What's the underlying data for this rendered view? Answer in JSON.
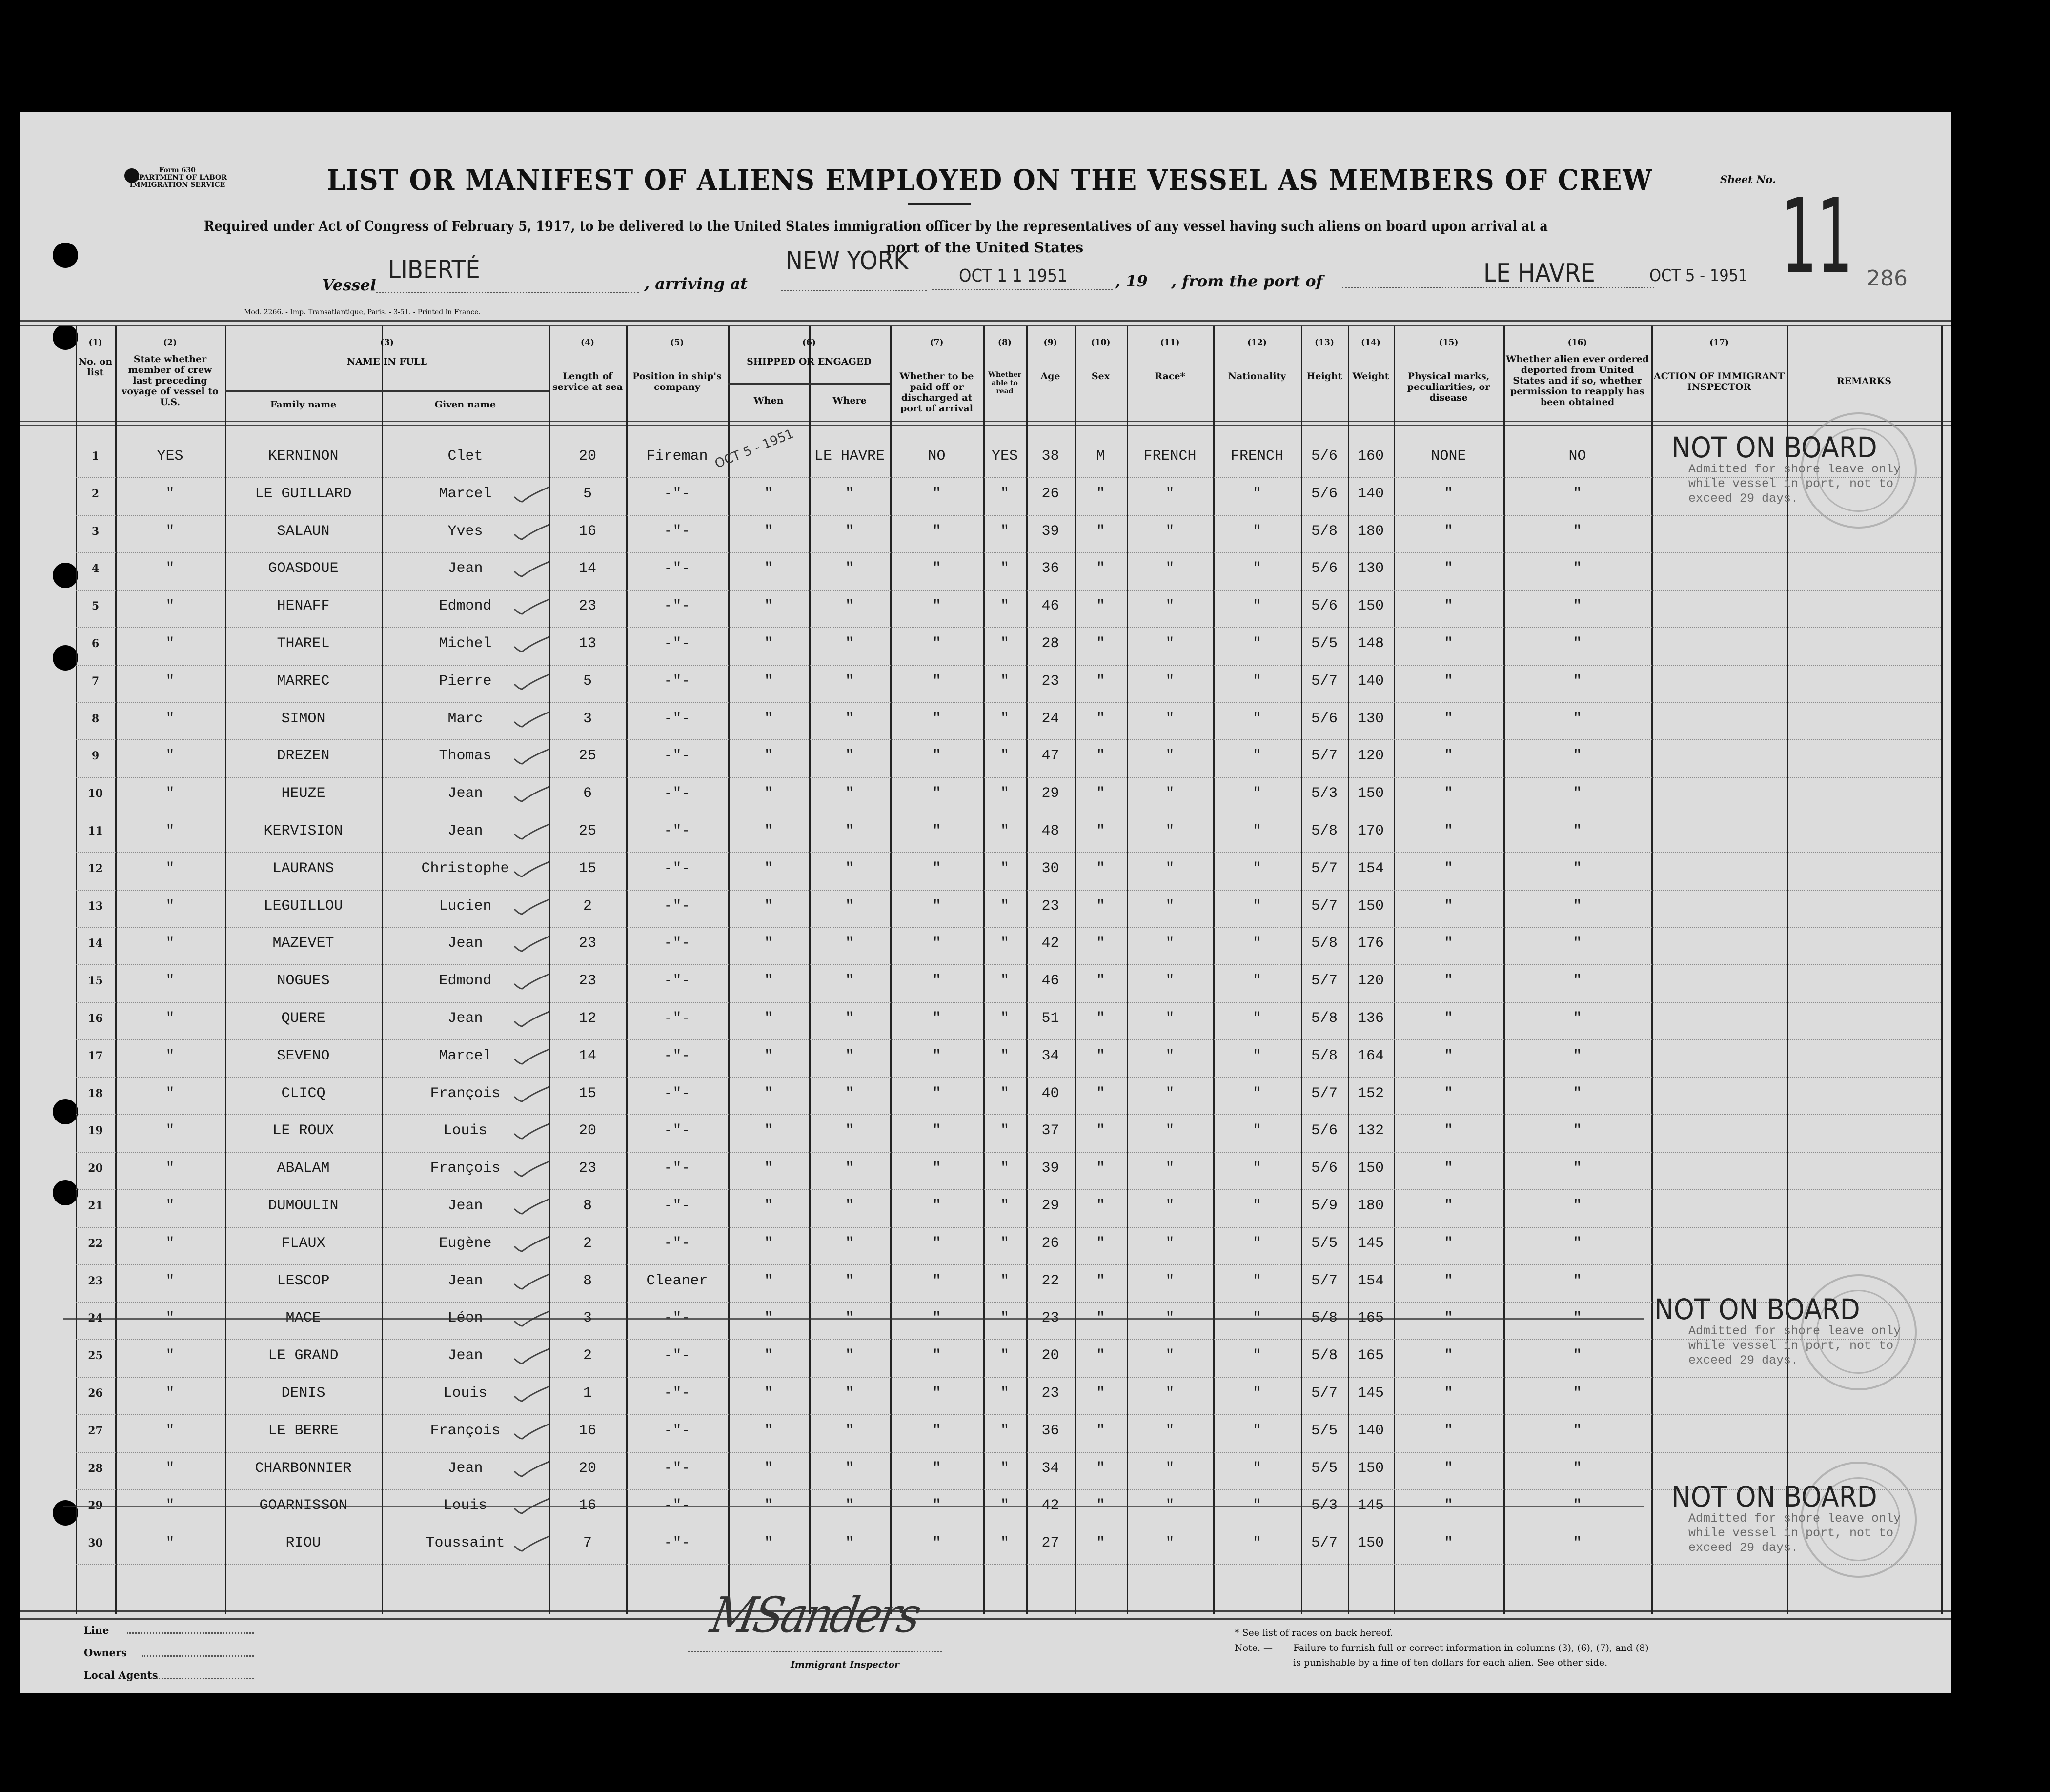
{
  "header": {
    "form_label": [
      "Form 630",
      "DEPARTMENT OF LABOR",
      "IMMIGRATION SERVICE"
    ],
    "title": "LIST OR MANIFEST OF ALIENS EMPLOYED ON THE VESSEL AS MEMBERS OF CREW",
    "sheet_label": "Sheet No.",
    "sheet_number": "11",
    "sheet_sub_number": "286",
    "requirement_line1": "Required under Act of Congress of February 5, 1917, to be delivered to the United States immigration officer by the representatives of any vessel having such aliens on board upon arrival at a",
    "requirement_line2": "port of the United States",
    "vessel_label": "Vessel",
    "vessel": "LIBERTÉ",
    "arriving_label": ", arriving at",
    "arriving_port": "NEW YORK",
    "arrival_date": "OCT 1 1 1951",
    "year_label": ", 19",
    "from_label": ", from the port of",
    "from_port": "LE HAVRE",
    "departure_date": "OCT 5 - 1951",
    "printer_line": "Mod. 2266. - Imp. Transatlantique, Paris. - 3-51. - Printed in France."
  },
  "columns": [
    {
      "num": "(1)",
      "label": "No. on list"
    },
    {
      "num": "(2)",
      "label": "State whether member of crew last preceding voyage of vessel to U.S."
    },
    {
      "num": "(3)",
      "label": "NAME IN FULL",
      "sub": [
        "Family name",
        "Given name"
      ]
    },
    {
      "num": "(4)",
      "label": "Length of service at sea"
    },
    {
      "num": "(5)",
      "label": "Position in ship's company"
    },
    {
      "num": "(6)",
      "label": "SHIPPED OR ENGAGED",
      "sub": [
        "When",
        "Where"
      ]
    },
    {
      "num": "(7)",
      "label": "Whether to be paid off or discharged at port of arrival"
    },
    {
      "num": "(8)",
      "label": "Whether able to read"
    },
    {
      "num": "(9)",
      "label": "Age"
    },
    {
      "num": "(10)",
      "label": "Sex"
    },
    {
      "num": "(11)",
      "label": "Race*"
    },
    {
      "num": "(12)",
      "label": "Nationality"
    },
    {
      "num": "(13)",
      "label": "Height"
    },
    {
      "num": "(14)",
      "label": "Weight"
    },
    {
      "num": "(15)",
      "label": "Physical marks, peculiarities, or disease"
    },
    {
      "num": "(16)",
      "label": "Whether alien ever ordered deported from United States and if so, whether permission to reapply has been obtained"
    },
    {
      "num": "(17)",
      "label": "ACTION OF IMMIGRANT INSPECTOR"
    },
    {
      "num": "",
      "label": "REMARKS"
    }
  ],
  "rows": [
    [
      "1",
      "YES",
      "KERNINON",
      "Clet",
      "20",
      "Fireman",
      "",
      "LE HAVRE",
      "NO",
      "YES",
      "38",
      "M",
      "FRENCH",
      "FRENCH",
      "5/6",
      "160",
      "NONE",
      "NO"
    ],
    [
      "2",
      "\"",
      "LE GUILLARD",
      "Marcel",
      "5",
      "-\"-",
      "\"",
      "\"",
      "\"",
      "\"",
      "26",
      "\"",
      "\"",
      "\"",
      "5/6",
      "140",
      "\"",
      "\""
    ],
    [
      "3",
      "\"",
      "SALAUN",
      "Yves",
      "16",
      "-\"-",
      "\"",
      "\"",
      "\"",
      "\"",
      "39",
      "\"",
      "\"",
      "\"",
      "5/8",
      "180",
      "\"",
      "\""
    ],
    [
      "4",
      "\"",
      "GOASDOUE",
      "Jean",
      "14",
      "-\"-",
      "\"",
      "\"",
      "\"",
      "\"",
      "36",
      "\"",
      "\"",
      "\"",
      "5/6",
      "130",
      "\"",
      "\""
    ],
    [
      "5",
      "\"",
      "HENAFF",
      "Edmond",
      "23",
      "-\"-",
      "\"",
      "\"",
      "\"",
      "\"",
      "46",
      "\"",
      "\"",
      "\"",
      "5/6",
      "150",
      "\"",
      "\""
    ],
    [
      "6",
      "\"",
      "THAREL",
      "Michel",
      "13",
      "-\"-",
      "\"",
      "\"",
      "\"",
      "\"",
      "28",
      "\"",
      "\"",
      "\"",
      "5/5",
      "148",
      "\"",
      "\""
    ],
    [
      "7",
      "\"",
      "MARREC",
      "Pierre",
      "5",
      "-\"-",
      "\"",
      "\"",
      "\"",
      "\"",
      "23",
      "\"",
      "\"",
      "\"",
      "5/7",
      "140",
      "\"",
      "\""
    ],
    [
      "8",
      "\"",
      "SIMON",
      "Marc",
      "3",
      "-\"-",
      "\"",
      "\"",
      "\"",
      "\"",
      "24",
      "\"",
      "\"",
      "\"",
      "5/6",
      "130",
      "\"",
      "\""
    ],
    [
      "9",
      "\"",
      "DREZEN",
      "Thomas",
      "25",
      "-\"-",
      "\"",
      "\"",
      "\"",
      "\"",
      "47",
      "\"",
      "\"",
      "\"",
      "5/7",
      "120",
      "\"",
      "\""
    ],
    [
      "10",
      "\"",
      "HEUZE",
      "Jean",
      "6",
      "-\"-",
      "\"",
      "\"",
      "\"",
      "\"",
      "29",
      "\"",
      "\"",
      "\"",
      "5/3",
      "150",
      "\"",
      "\""
    ],
    [
      "11",
      "\"",
      "KERVISION",
      "Jean",
      "25",
      "-\"-",
      "\"",
      "\"",
      "\"",
      "\"",
      "48",
      "\"",
      "\"",
      "\"",
      "5/8",
      "170",
      "\"",
      "\""
    ],
    [
      "12",
      "\"",
      "LAURANS",
      "Christophe",
      "15",
      "-\"-",
      "\"",
      "\"",
      "\"",
      "\"",
      "30",
      "\"",
      "\"",
      "\"",
      "5/7",
      "154",
      "\"",
      "\""
    ],
    [
      "13",
      "\"",
      "LEGUILLOU",
      "Lucien",
      "2",
      "-\"-",
      "\"",
      "\"",
      "\"",
      "\"",
      "23",
      "\"",
      "\"",
      "\"",
      "5/7",
      "150",
      "\"",
      "\""
    ],
    [
      "14",
      "\"",
      "MAZEVET",
      "Jean",
      "23",
      "-\"-",
      "\"",
      "\"",
      "\"",
      "\"",
      "42",
      "\"",
      "\"",
      "\"",
      "5/8",
      "176",
      "\"",
      "\""
    ],
    [
      "15",
      "\"",
      "NOGUES",
      "Edmond",
      "23",
      "-\"-",
      "\"",
      "\"",
      "\"",
      "\"",
      "46",
      "\"",
      "\"",
      "\"",
      "5/7",
      "120",
      "\"",
      "\""
    ],
    [
      "16",
      "\"",
      "QUERE",
      "Jean",
      "12",
      "-\"-",
      "\"",
      "\"",
      "\"",
      "\"",
      "51",
      "\"",
      "\"",
      "\"",
      "5/8",
      "136",
      "\"",
      "\""
    ],
    [
      "17",
      "\"",
      "SEVENO",
      "Marcel",
      "14",
      "-\"-",
      "\"",
      "\"",
      "\"",
      "\"",
      "34",
      "\"",
      "\"",
      "\"",
      "5/8",
      "164",
      "\"",
      "\""
    ],
    [
      "18",
      "\"",
      "CLICQ",
      "François",
      "15",
      "-\"-",
      "\"",
      "\"",
      "\"",
      "\"",
      "40",
      "\"",
      "\"",
      "\"",
      "5/7",
      "152",
      "\"",
      "\""
    ],
    [
      "19",
      "\"",
      "LE ROUX",
      "Louis",
      "20",
      "-\"-",
      "\"",
      "\"",
      "\"",
      "\"",
      "37",
      "\"",
      "\"",
      "\"",
      "5/6",
      "132",
      "\"",
      "\""
    ],
    [
      "20",
      "\"",
      "ABALAM",
      "François",
      "23",
      "-\"-",
      "\"",
      "\"",
      "\"",
      "\"",
      "39",
      "\"",
      "\"",
      "\"",
      "5/6",
      "150",
      "\"",
      "\""
    ],
    [
      "21",
      "\"",
      "DUMOULIN",
      "Jean",
      "8",
      "-\"-",
      "\"",
      "\"",
      "\"",
      "\"",
      "29",
      "\"",
      "\"",
      "\"",
      "5/9",
      "180",
      "\"",
      "\""
    ],
    [
      "22",
      "\"",
      "FLAUX",
      "Eugène",
      "2",
      "-\"-",
      "\"",
      "\"",
      "\"",
      "\"",
      "26",
      "\"",
      "\"",
      "\"",
      "5/5",
      "145",
      "\"",
      "\""
    ],
    [
      "23",
      "\"",
      "LESCOP",
      "Jean",
      "8",
      "Cleaner",
      "\"",
      "\"",
      "\"",
      "\"",
      "22",
      "\"",
      "\"",
      "\"",
      "5/7",
      "154",
      "\"",
      "\""
    ],
    [
      "24",
      "\"",
      "MACE",
      "Léon",
      "3",
      "-\"-",
      "\"",
      "\"",
      "\"",
      "\"",
      "23",
      "\"",
      "\"",
      "\"",
      "5/8",
      "165",
      "\"",
      "\""
    ],
    [
      "25",
      "\"",
      "LE GRAND",
      "Jean",
      "2",
      "-\"-",
      "\"",
      "\"",
      "\"",
      "\"",
      "20",
      "\"",
      "\"",
      "\"",
      "5/8",
      "165",
      "\"",
      "\""
    ],
    [
      "26",
      "\"",
      "DENIS",
      "Louis",
      "1",
      "-\"-",
      "\"",
      "\"",
      "\"",
      "\"",
      "23",
      "\"",
      "\"",
      "\"",
      "5/7",
      "145",
      "\"",
      "\""
    ],
    [
      "27",
      "\"",
      "LE BERRE",
      "François",
      "16",
      "-\"-",
      "\"",
      "\"",
      "\"",
      "\"",
      "36",
      "\"",
      "\"",
      "\"",
      "5/5",
      "140",
      "\"",
      "\""
    ],
    [
      "28",
      "\"",
      "CHARBONNIER",
      "Jean",
      "20",
      "-\"-",
      "\"",
      "\"",
      "\"",
      "\"",
      "34",
      "\"",
      "\"",
      "\"",
      "5/5",
      "150",
      "\"",
      "\""
    ],
    [
      "29",
      "\"",
      "GOARNISSON",
      "Louis",
      "16",
      "-\"-",
      "\"",
      "\"",
      "\"",
      "\"",
      "42",
      "\"",
      "\"",
      "\"",
      "5/3",
      "145",
      "\"",
      "\""
    ],
    [
      "30",
      "\"",
      "RIOU",
      "Toussaint",
      "7",
      "-\"-",
      "\"",
      "\"",
      "\"",
      "\"",
      "27",
      "\"",
      "\"",
      "\"",
      "5/7",
      "150",
      "\"",
      "\""
    ]
  ],
  "struck_rows": [
    "24",
    "29"
  ],
  "row1_shipped_stamp": "OCT 5 - 1951",
  "stamps": [
    {
      "row": "1",
      "text": "NOT ON BOARD",
      "note": "Admitted for shore leave only\nwhile vessel in port, not to\nexceed 29 days."
    },
    {
      "row": "24",
      "text": "NOT ON BOARD",
      "note": "Admitted for shore leave only\nwhile vessel in port, not to\nexceed 29 days."
    },
    {
      "row": "29",
      "text": "NOT ON BOARD",
      "note": "Admitted for shore leave only\nwhile vessel in port, not to\nexceed 29 days."
    }
  ],
  "footer": {
    "line_label": "Line",
    "owners_label": "Owners",
    "agents_label": "Local Agents",
    "signature": "MSanders",
    "inspector_label": "Immigrant Inspector",
    "races_note": "* See list of races on back hereof.",
    "note_label": "Note. —",
    "note_line1": "Failure to furnish full or correct information in columns (3), (6), (7), and (8)",
    "note_line2": "is punishable by a fine of ten dollars for each alien. See other side."
  }
}
